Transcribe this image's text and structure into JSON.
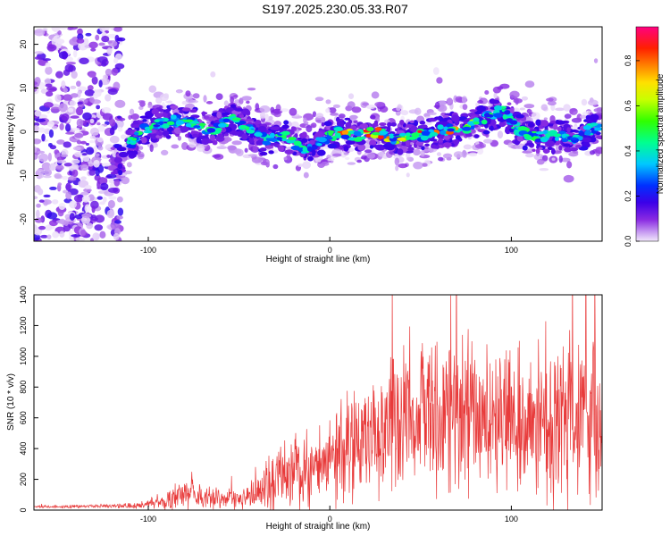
{
  "title": "S197.2025.230.05.33.R07",
  "chart_data": [
    {
      "type": "heatmap",
      "title": "S197.2025.230.05.33.R07",
      "xlabel": "Height of straight line (km)",
      "ylabel": "Frequency (Hz)",
      "xlim": [
        -163,
        150
      ],
      "ylim": [
        -25,
        24
      ],
      "xticks": [
        -100,
        0,
        100
      ],
      "yticks": [
        -20,
        -10,
        0,
        10,
        20
      ],
      "ridge": {
        "x": [
          -125,
          -115,
          -105,
          -95,
          -85,
          -75,
          -65,
          -55,
          -45,
          -35,
          -25,
          -15,
          -5,
          5,
          15,
          25,
          35,
          45,
          55,
          65,
          75,
          85,
          95,
          105,
          115,
          125,
          135,
          145
        ],
        "freq": [
          -11,
          -6,
          0,
          2,
          2.5,
          2,
          0,
          3,
          1,
          -2,
          -1,
          -4,
          -2,
          0,
          -1,
          0,
          -1.5,
          -1,
          -0.5,
          0.5,
          1,
          3,
          5,
          0,
          -1,
          -1,
          -1.5,
          1
        ]
      },
      "colorbar": {
        "label": "Normalized spectral amplitude",
        "range": [
          0,
          0.95
        ],
        "ticks": [
          "0.0",
          "0.2",
          "0.4",
          "0.6",
          "0.8"
        ]
      }
    },
    {
      "type": "line",
      "xlabel": "Height of straight line (km)",
      "ylabel": "SNR (10 * v/v)",
      "xlim": [
        -163,
        150
      ],
      "ylim": [
        0,
        1400
      ],
      "xticks": [
        -100,
        0,
        100
      ],
      "yticks": [
        0,
        200,
        400,
        600,
        800,
        1000,
        1200,
        1400
      ],
      "color": "#e83a3a",
      "envelope": {
        "x": [
          -163,
          -120,
          -100,
          -90,
          -80,
          -70,
          -60,
          -50,
          -40,
          -30,
          -20,
          -10,
          0,
          10,
          20,
          30,
          40,
          50,
          60,
          70,
          80,
          90,
          100,
          110,
          120,
          130,
          140,
          150
        ],
        "mean": [
          20,
          25,
          35,
          70,
          110,
          90,
          75,
          80,
          100,
          200,
          280,
          300,
          350,
          420,
          480,
          540,
          580,
          600,
          640,
          660,
          620,
          640,
          600,
          560,
          520,
          550,
          600,
          620
        ],
        "spread": [
          12,
          15,
          30,
          100,
          120,
          100,
          80,
          80,
          130,
          250,
          330,
          350,
          380,
          450,
          500,
          560,
          600,
          580,
          620,
          640,
          600,
          620,
          600,
          600,
          640,
          660,
          620,
          600
        ]
      }
    }
  ]
}
